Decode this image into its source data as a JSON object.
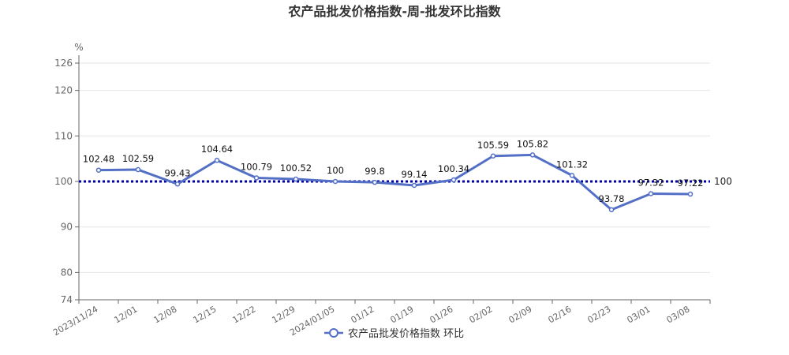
{
  "chart_data": {
    "type": "line",
    "title": "农产品批发价格指数-周-批发环比指数",
    "ylabel": "%",
    "xlabel": "",
    "ylim": [
      74,
      126
    ],
    "yticks": [
      74,
      80,
      90,
      100,
      110,
      120,
      126
    ],
    "grid": true,
    "legend_position": "bottom",
    "categories": [
      "2023/11/24",
      "12/01",
      "12/08",
      "12/15",
      "12/22",
      "12/29",
      "2024/01/05",
      "01/12",
      "01/19",
      "01/26",
      "02/02",
      "02/09",
      "02/16",
      "02/23",
      "03/01",
      "03/08"
    ],
    "series": [
      {
        "name": "农产品批发价格指数 环比",
        "values": [
          102.48,
          102.59,
          99.43,
          104.64,
          100.79,
          100.52,
          100,
          99.8,
          99.14,
          100.34,
          105.59,
          105.82,
          101.32,
          93.78,
          97.32,
          97.22
        ],
        "labels": [
          "102.48",
          "102.59",
          "99.43",
          "104.64",
          "100.79",
          "100.52",
          "100",
          "99.8",
          "99.14",
          "100.34",
          "105.59",
          "105.82",
          "101.32",
          "93.78",
          "97.32",
          "97.22"
        ],
        "color": "#5470c6"
      }
    ],
    "reference_line": {
      "value": 100,
      "label": "100",
      "color": "#0000aa"
    }
  }
}
